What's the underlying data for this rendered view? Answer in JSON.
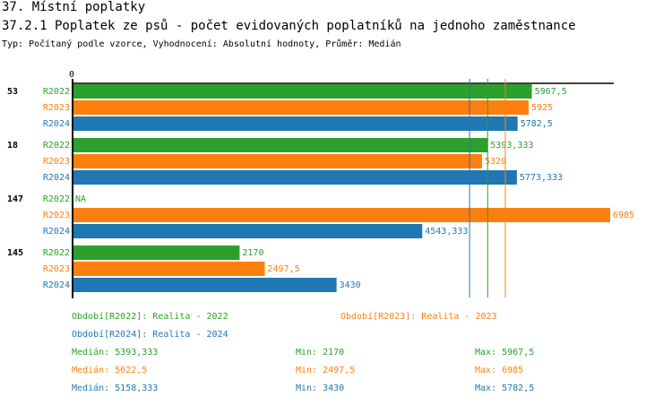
{
  "header": {
    "section": "37. Místní poplatky",
    "title": "37.2.1 Poplatek ze psů - počet evidovaných poplatníků na jednoho zaměstnance",
    "subtitle": "Typ: Počítaný podle vzorce, Vyhodnocení: Absolutní hodnoty, Průměr: Medián"
  },
  "colors": {
    "R2022": "#2ca02c",
    "R2023": "#ff7f0e",
    "R2024": "#1f77b4"
  },
  "chart_data": {
    "type": "bar",
    "orientation": "horizontal",
    "xlim": [
      0,
      6985
    ],
    "x_tick_labels": [
      "0"
    ],
    "groups": [
      {
        "label": "53",
        "values": {
          "R2022": "5967,5",
          "R2023": "5925",
          "R2024": "5782,5"
        }
      },
      {
        "label": "18",
        "values": {
          "R2022": "5393,333",
          "R2023": "5320",
          "R2024": "5773,333"
        }
      },
      {
        "label": "147",
        "values": {
          "R2022": "NA",
          "R2023": "6985",
          "R2024": "4543,333"
        }
      },
      {
        "label": "145",
        "values": {
          "R2022": "2170",
          "R2023": "2497,5",
          "R2024": "3430"
        }
      }
    ],
    "series": [
      "R2022",
      "R2023",
      "R2024"
    ],
    "median_lines": {
      "R2022": 5393.333,
      "R2023": 5622.5,
      "R2024": 5158.333
    }
  },
  "legend": {
    "R2022": "Období[R2022]: Realita - 2022",
    "R2023": "Období[R2023]: Realita - 2023",
    "R2024": "Období[R2024]: Realita - 2024"
  },
  "stats": [
    {
      "series": "R2022",
      "median": "Medián: 5393,333",
      "min": "Min: 2170",
      "max": "Max: 5967,5"
    },
    {
      "series": "R2023",
      "median": "Medián: 5622,5",
      "min": "Min: 2497,5",
      "max": "Max: 6985"
    },
    {
      "series": "R2024",
      "median": "Medián: 5158,333",
      "min": "Min: 3430",
      "max": "Max: 5782,5"
    }
  ]
}
